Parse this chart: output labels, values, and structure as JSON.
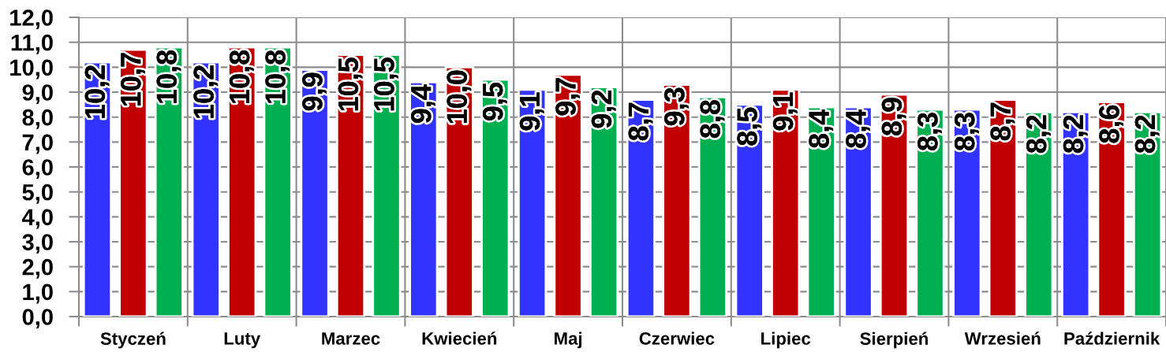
{
  "chart_data": {
    "type": "bar",
    "categories": [
      "Styczeń",
      "Luty",
      "Marzec",
      "Kwiecień",
      "Maj",
      "Czerwiec",
      "Lipiec",
      "Sierpień",
      "Wrzesień",
      "Październik"
    ],
    "series": [
      {
        "color": "#3333ff",
        "values": [
          10.2,
          10.2,
          9.9,
          9.4,
          9.1,
          8.7,
          8.5,
          8.4,
          8.3,
          8.2
        ],
        "value_labels": [
          "10,2",
          "10,2",
          "9,9",
          "9,4",
          "9,1",
          "8,7",
          "8,5",
          "8,4",
          "8,3",
          "8,2"
        ]
      },
      {
        "color": "#c00000",
        "values": [
          10.7,
          10.8,
          10.5,
          10.0,
          9.7,
          9.3,
          9.1,
          8.9,
          8.7,
          8.6
        ],
        "value_labels": [
          "10,7",
          "10,8",
          "10,5",
          "10,0",
          "9,7",
          "9,3",
          "9,1",
          "8,9",
          "8,7",
          "8,6"
        ]
      },
      {
        "color": "#00b050",
        "values": [
          10.8,
          10.8,
          10.5,
          9.5,
          9.2,
          8.8,
          8.4,
          8.3,
          8.2,
          8.2
        ],
        "value_labels": [
          "10,8",
          "10,8",
          "10,5",
          "9,5",
          "9,2",
          "8,8",
          "8,4",
          "8,3",
          "8,2",
          "8,2"
        ]
      }
    ],
    "ylim": [
      0,
      12
    ],
    "yticks": [
      {
        "value": 0,
        "label": "0,0"
      },
      {
        "value": 1,
        "label": "1,0"
      },
      {
        "value": 2,
        "label": "2,0"
      },
      {
        "value": 3,
        "label": "3,0"
      },
      {
        "value": 4,
        "label": "4,0"
      },
      {
        "value": 5,
        "label": "5,0"
      },
      {
        "value": 6,
        "label": "6,0"
      },
      {
        "value": 7,
        "label": "7,0"
      },
      {
        "value": 8,
        "label": "8,0"
      },
      {
        "value": 9,
        "label": "9,0"
      },
      {
        "value": 10,
        "label": "10,0"
      },
      {
        "value": 11,
        "label": "11,0"
      },
      {
        "value": 12,
        "label": "12,0"
      }
    ],
    "grid": true
  }
}
